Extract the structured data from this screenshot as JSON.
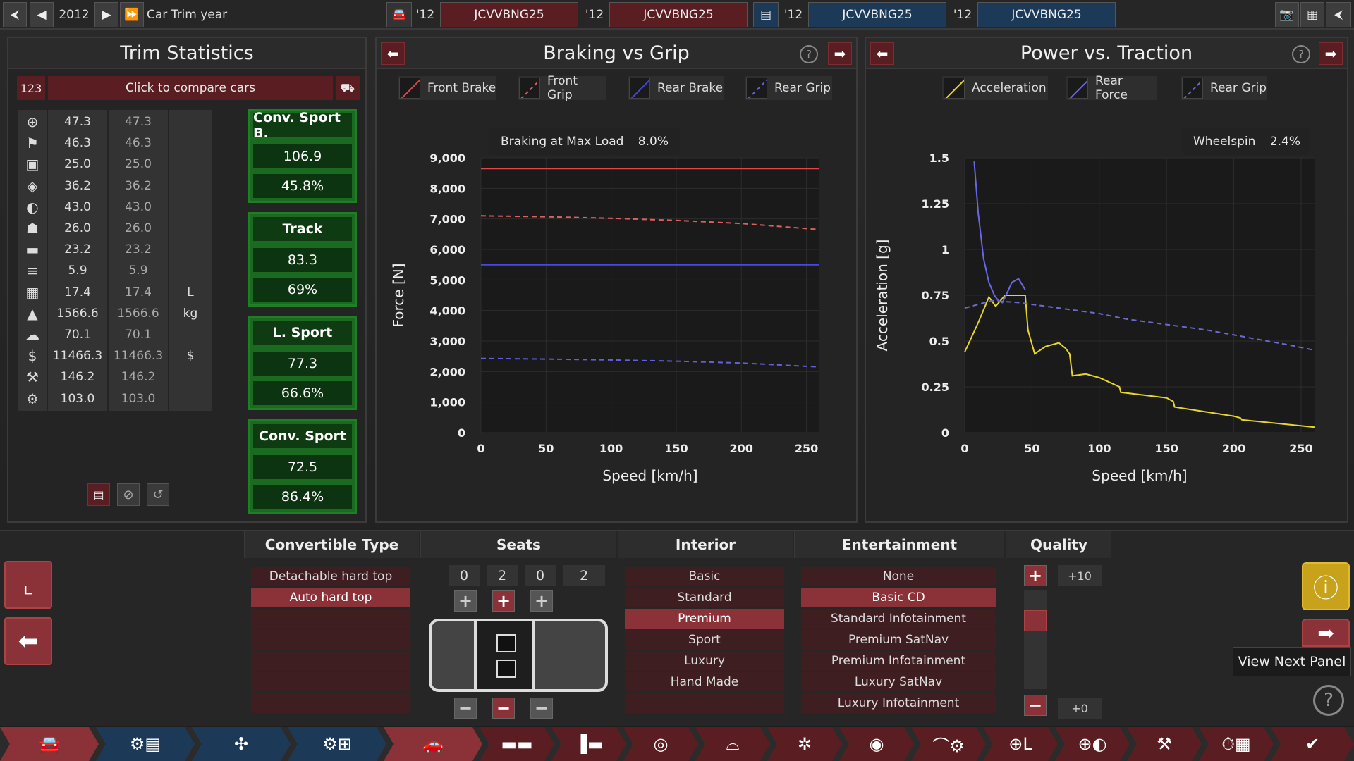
{
  "topbar": {
    "year": "2012",
    "trim_label": "Car Trim year",
    "cars": [
      {
        "year": "'12",
        "name": "JCVVBNG25"
      },
      {
        "year": "'12",
        "name": "JCVVBNG25"
      },
      {
        "year": "'12",
        "name": "JCVVBNG25"
      },
      {
        "year": "'12",
        "name": "JCVVBNG25"
      }
    ]
  },
  "trim_stats": {
    "title": "Trim Statistics",
    "compare_badge": "123",
    "compare_label": "Click to compare cars",
    "rows": [
      {
        "icon": "steering-wheel-icon",
        "glyph": "⊕",
        "a": "47.3",
        "b": "47.3",
        "unit": ""
      },
      {
        "icon": "race-flag-icon",
        "glyph": "⚑",
        "a": "46.3",
        "b": "46.3",
        "unit": ""
      },
      {
        "icon": "seat-icon",
        "glyph": "▣",
        "a": "25.0",
        "b": "25.0",
        "unit": ""
      },
      {
        "icon": "shield-icon",
        "glyph": "◈",
        "a": "36.2",
        "b": "36.2",
        "unit": ""
      },
      {
        "icon": "checkered-circle-icon",
        "glyph": "◐",
        "a": "43.0",
        "b": "43.0",
        "unit": ""
      },
      {
        "icon": "passengers-icon",
        "glyph": "☗",
        "a": "26.0",
        "b": "26.0",
        "unit": ""
      },
      {
        "icon": "truck-icon",
        "glyph": "▬",
        "a": "23.2",
        "b": "23.2",
        "unit": ""
      },
      {
        "icon": "fast-car-icon",
        "glyph": "≡",
        "a": "5.9",
        "b": "5.9",
        "unit": ""
      },
      {
        "icon": "fuel-icon",
        "glyph": "▦",
        "a": "17.4",
        "b": "17.4",
        "unit": "L"
      },
      {
        "icon": "weight-icon",
        "glyph": "▲",
        "a": "1566.6",
        "b": "1566.6",
        "unit": "kg"
      },
      {
        "icon": "emissions-icon",
        "glyph": "☁",
        "a": "70.1",
        "b": "70.1",
        "unit": ""
      },
      {
        "icon": "money-bag-icon",
        "glyph": "$",
        "a": "11466.3",
        "b": "11466.3",
        "unit": "$"
      },
      {
        "icon": "service-icon",
        "glyph": "⚒",
        "a": "146.2",
        "b": "146.2",
        "unit": ""
      },
      {
        "icon": "gear-icon",
        "glyph": "⚙",
        "a": "103.0",
        "b": "103.0",
        "unit": ""
      }
    ],
    "markets": [
      {
        "name": "Conv. Sport B.",
        "score": "106.9",
        "pct": "45.8%"
      },
      {
        "name": "Track",
        "score": "83.3",
        "pct": "69%"
      },
      {
        "name": "L. Sport",
        "score": "77.3",
        "pct": "66.6%"
      },
      {
        "name": "Conv. Sport",
        "score": "72.5",
        "pct": "86.4%"
      }
    ]
  },
  "braking": {
    "title": "Braking vs Grip",
    "legend": [
      "Front Brake",
      "Front Grip",
      "Rear Brake",
      "Rear Grip"
    ],
    "annotation_label": "Braking at Max Load",
    "annotation_value": "8.0%"
  },
  "power": {
    "title": "Power vs. Traction",
    "legend": [
      "Acceleration",
      "Rear Force",
      "Rear Grip"
    ],
    "annotation_label": "Wheelspin",
    "annotation_value": "2.4%"
  },
  "chart_data": [
    {
      "type": "line",
      "title": "Braking vs Grip",
      "xlabel": "Speed [km/h]",
      "ylabel": "Force [N]",
      "xlim": [
        0,
        260
      ],
      "ylim": [
        0,
        9000
      ],
      "xticks": [
        "0",
        "50",
        "100",
        "150",
        "200",
        "250"
      ],
      "yticks": [
        "0",
        "1,000",
        "2,000",
        "3,000",
        "4,000",
        "5,000",
        "6,000",
        "7,000",
        "8,000",
        "9,000"
      ],
      "series": [
        {
          "name": "Front Brake",
          "color": "#e04848",
          "dash": false,
          "x": [
            0,
            260
          ],
          "values": [
            8650,
            8650
          ]
        },
        {
          "name": "Front Grip",
          "color": "#e06060",
          "dash": true,
          "x": [
            0,
            50,
            100,
            150,
            200,
            260
          ],
          "values": [
            7100,
            7070,
            7020,
            6950,
            6850,
            6650
          ]
        },
        {
          "name": "Rear Brake",
          "color": "#4848e0",
          "dash": false,
          "x": [
            0,
            260
          ],
          "values": [
            5500,
            5500
          ]
        },
        {
          "name": "Rear Grip",
          "color": "#6060e0",
          "dash": true,
          "x": [
            0,
            50,
            100,
            150,
            200,
            260
          ],
          "values": [
            2430,
            2410,
            2380,
            2340,
            2280,
            2150
          ]
        }
      ]
    },
    {
      "type": "line",
      "title": "Power vs. Traction",
      "xlabel": "Speed [km/h]",
      "ylabel": "Acceleration [g]",
      "xlim": [
        0,
        260
      ],
      "ylim": [
        0,
        1.5
      ],
      "xticks": [
        "0",
        "50",
        "100",
        "150",
        "200",
        "250"
      ],
      "yticks": [
        "0",
        "0.25",
        "0.5",
        "0.75",
        "1",
        "1.25",
        "1.5"
      ],
      "series": [
        {
          "name": "Acceleration",
          "color": "#e6d62a",
          "dash": false,
          "x": [
            0,
            10,
            18,
            23,
            30,
            45,
            47,
            52,
            60,
            70,
            75,
            78,
            80,
            90,
            100,
            115,
            116,
            150,
            155,
            156,
            200,
            205,
            206,
            260
          ],
          "values": [
            0.44,
            0.6,
            0.74,
            0.69,
            0.75,
            0.75,
            0.56,
            0.43,
            0.47,
            0.49,
            0.46,
            0.43,
            0.31,
            0.32,
            0.3,
            0.25,
            0.22,
            0.19,
            0.17,
            0.14,
            0.09,
            0.08,
            0.07,
            0.03
          ]
        },
        {
          "name": "Rear Force",
          "color": "#6868e6",
          "dash": false,
          "x": [
            7,
            10,
            14,
            18,
            22,
            25,
            28,
            32,
            35,
            40,
            45
          ],
          "values": [
            1.48,
            1.2,
            0.95,
            0.82,
            0.75,
            0.72,
            0.71,
            0.77,
            0.82,
            0.84,
            0.78
          ]
        },
        {
          "name": "Rear Grip",
          "color": "#6a6ad0",
          "dash": true,
          "x": [
            0,
            20,
            40,
            60,
            80,
            100,
            120,
            150,
            180,
            210,
            240,
            260
          ],
          "values": [
            0.68,
            0.72,
            0.71,
            0.69,
            0.67,
            0.65,
            0.62,
            0.59,
            0.56,
            0.52,
            0.48,
            0.45
          ]
        }
      ]
    }
  ],
  "bottom": {
    "convertible": {
      "title": "Convertible Type",
      "options": [
        "Detachable hard top",
        "Auto hard top",
        "",
        "",
        "",
        "",
        ""
      ],
      "selected": 1
    },
    "seats": {
      "title": "Seats",
      "counts": [
        "0",
        "2",
        "0"
      ],
      "total": "2"
    },
    "interior": {
      "title": "Interior",
      "options": [
        "Basic",
        "Standard",
        "Premium",
        "Sport",
        "Luxury",
        "Hand Made",
        ""
      ],
      "selected": 2
    },
    "entertainment": {
      "title": "Entertainment",
      "options": [
        "None",
        "Basic CD",
        "Standard Infotainment",
        "Premium SatNav",
        "Premium Infotainment",
        "Luxury SatNav",
        "Luxury Infotainment"
      ],
      "selected": 1
    },
    "quality": {
      "title": "Quality",
      "max": "+10",
      "min": "+0",
      "level": 0.75
    },
    "tooltip": "View Next Panel"
  }
}
